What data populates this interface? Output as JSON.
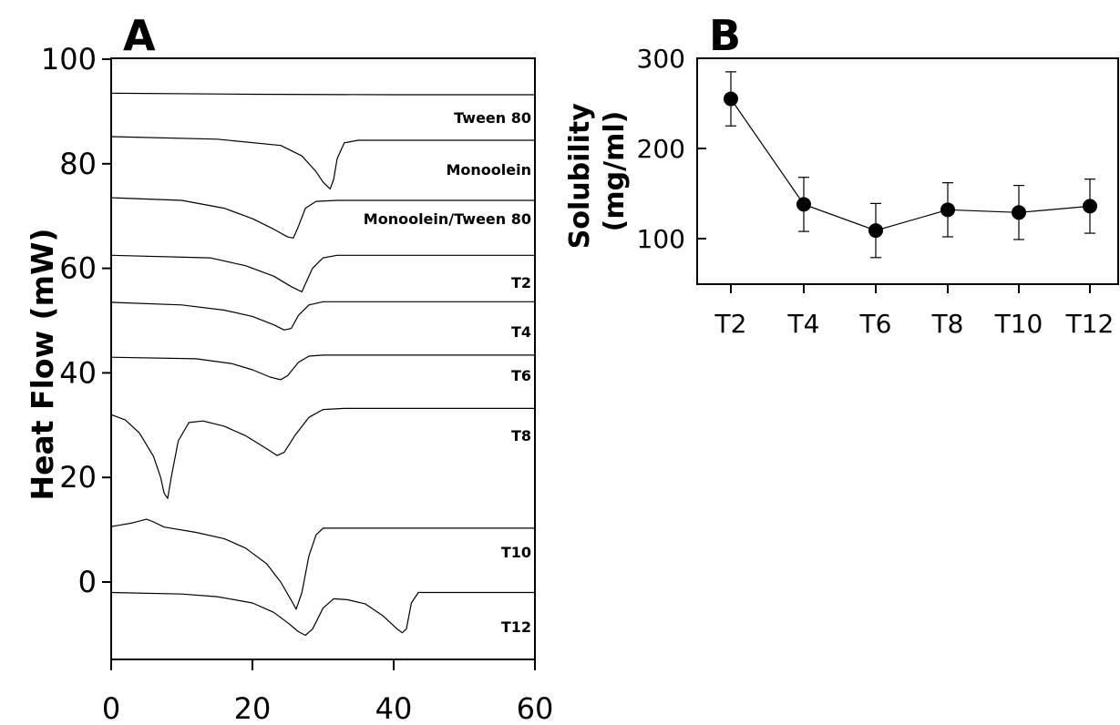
{
  "chart_data": [
    {
      "panel": "A",
      "type": "line",
      "ylabel": "Heat Flow (mW)",
      "xlabel": "",
      "xlim": [
        0,
        60
      ],
      "ylim": [
        -16,
        100
      ],
      "x_ticks": [
        "0",
        "20",
        "40",
        "60"
      ],
      "y_ticks": [
        "100",
        "80",
        "60",
        "40",
        "20",
        "0"
      ],
      "series": [
        {
          "name": "Tween 80",
          "points": [
            [
              0,
              93.5
            ],
            [
              20,
              93.3
            ],
            [
              40,
              93.2
            ],
            [
              60,
              93.2
            ]
          ]
        },
        {
          "name": "Monoolein",
          "points": [
            [
              0,
              85.2
            ],
            [
              15,
              84.7
            ],
            [
              24,
              83.5
            ],
            [
              27,
              81.5
            ],
            [
              29,
              78.5
            ],
            [
              30,
              76.5
            ],
            [
              31,
              75.2
            ],
            [
              31.5,
              77
            ],
            [
              32,
              81
            ],
            [
              33,
              84
            ],
            [
              35,
              84.5
            ],
            [
              60,
              84.5
            ]
          ]
        },
        {
          "name": "Monoolein/Tween 80",
          "points": [
            [
              0,
              73.5
            ],
            [
              10,
              73
            ],
            [
              16,
              71.5
            ],
            [
              20,
              69.5
            ],
            [
              23,
              67.5
            ],
            [
              25,
              66
            ],
            [
              25.8,
              65.8
            ],
            [
              26.5,
              68
            ],
            [
              27.5,
              71.5
            ],
            [
              29,
              72.8
            ],
            [
              32,
              73
            ],
            [
              60,
              73
            ]
          ]
        },
        {
          "name": "T2",
          "points": [
            [
              0,
              62.5
            ],
            [
              14,
              62
            ],
            [
              19,
              60.5
            ],
            [
              23,
              58.5
            ],
            [
              25.5,
              56.5
            ],
            [
              27,
              55.5
            ],
            [
              27.5,
              57
            ],
            [
              28.5,
              60
            ],
            [
              30,
              62
            ],
            [
              32,
              62.5
            ],
            [
              60,
              62.5
            ]
          ]
        },
        {
          "name": "T4",
          "points": [
            [
              0,
              53.5
            ],
            [
              10,
              53
            ],
            [
              16,
              52
            ],
            [
              20,
              50.8
            ],
            [
              23,
              49.2
            ],
            [
              24.5,
              48.2
            ],
            [
              25.5,
              48.5
            ],
            [
              26.5,
              51
            ],
            [
              28,
              53
            ],
            [
              30,
              53.6
            ],
            [
              60,
              53.6
            ]
          ]
        },
        {
          "name": "T6",
          "points": [
            [
              0,
              43
            ],
            [
              12,
              42.7
            ],
            [
              17,
              41.8
            ],
            [
              20,
              40.6
            ],
            [
              22.5,
              39.2
            ],
            [
              24,
              38.7
            ],
            [
              25,
              39.5
            ],
            [
              26.5,
              42
            ],
            [
              28,
              43.2
            ],
            [
              30,
              43.4
            ],
            [
              60,
              43.4
            ]
          ]
        },
        {
          "name": "T8",
          "points": [
            [
              0,
              32
            ],
            [
              2,
              31
            ],
            [
              4,
              28.5
            ],
            [
              6,
              24
            ],
            [
              7,
              20
            ],
            [
              7.5,
              17
            ],
            [
              8,
              16
            ],
            [
              8.5,
              20
            ],
            [
              9.5,
              27
            ],
            [
              11,
              30.5
            ],
            [
              13,
              30.8
            ],
            [
              16,
              29.8
            ],
            [
              19,
              28
            ],
            [
              22,
              25.5
            ],
            [
              23.5,
              24.2
            ],
            [
              24.5,
              24.8
            ],
            [
              26,
              28
            ],
            [
              28,
              31.5
            ],
            [
              30,
              33
            ],
            [
              33,
              33.2
            ],
            [
              60,
              33.2
            ]
          ]
        },
        {
          "name": "T10",
          "points": [
            [
              0,
              10.6
            ],
            [
              3,
              11.3
            ],
            [
              5,
              12
            ],
            [
              6,
              11.5
            ],
            [
              7.5,
              10.5
            ],
            [
              12,
              9.5
            ],
            [
              16,
              8.3
            ],
            [
              19,
              6.5
            ],
            [
              22,
              3.5
            ],
            [
              24,
              0
            ],
            [
              25.5,
              -3.5
            ],
            [
              26.2,
              -5.2
            ],
            [
              27,
              -2
            ],
            [
              28,
              5
            ],
            [
              29,
              9
            ],
            [
              30,
              10.3
            ],
            [
              60,
              10.3
            ]
          ]
        },
        {
          "name": "T12",
          "points": [
            [
              0,
              -2
            ],
            [
              10,
              -2.3
            ],
            [
              15,
              -2.8
            ],
            [
              20,
              -4
            ],
            [
              23,
              -5.8
            ],
            [
              25,
              -7.8
            ],
            [
              26.5,
              -9.5
            ],
            [
              27.5,
              -10.2
            ],
            [
              28.5,
              -9
            ],
            [
              30,
              -5
            ],
            [
              31.5,
              -3.2
            ],
            [
              33.5,
              -3.4
            ],
            [
              36,
              -4.2
            ],
            [
              38.5,
              -6.5
            ],
            [
              40.5,
              -9
            ],
            [
              41.2,
              -9.7
            ],
            [
              41.8,
              -9
            ],
            [
              42.5,
              -4
            ],
            [
              43.5,
              -2
            ],
            [
              60,
              -2
            ]
          ]
        }
      ],
      "curve_labels": [
        "Tween 80",
        "Monoolein",
        "Monoolein/Tween 80",
        "T2",
        "T4",
        "T6",
        "T8",
        "T10",
        "T12"
      ]
    },
    {
      "panel": "B",
      "type": "line",
      "ylabel": "Solubility\n(mg/ml)",
      "xlabel": "",
      "categories": [
        "T2",
        "T4",
        "T6",
        "T8",
        "T10",
        "T12"
      ],
      "series": [
        {
          "values": [
            255,
            138,
            109,
            132,
            129,
            136
          ],
          "errors": [
            30,
            30,
            30,
            30,
            30,
            30
          ]
        }
      ],
      "ylim": [
        50,
        300
      ],
      "y_ticks": [
        "300",
        "200",
        "100"
      ]
    }
  ]
}
